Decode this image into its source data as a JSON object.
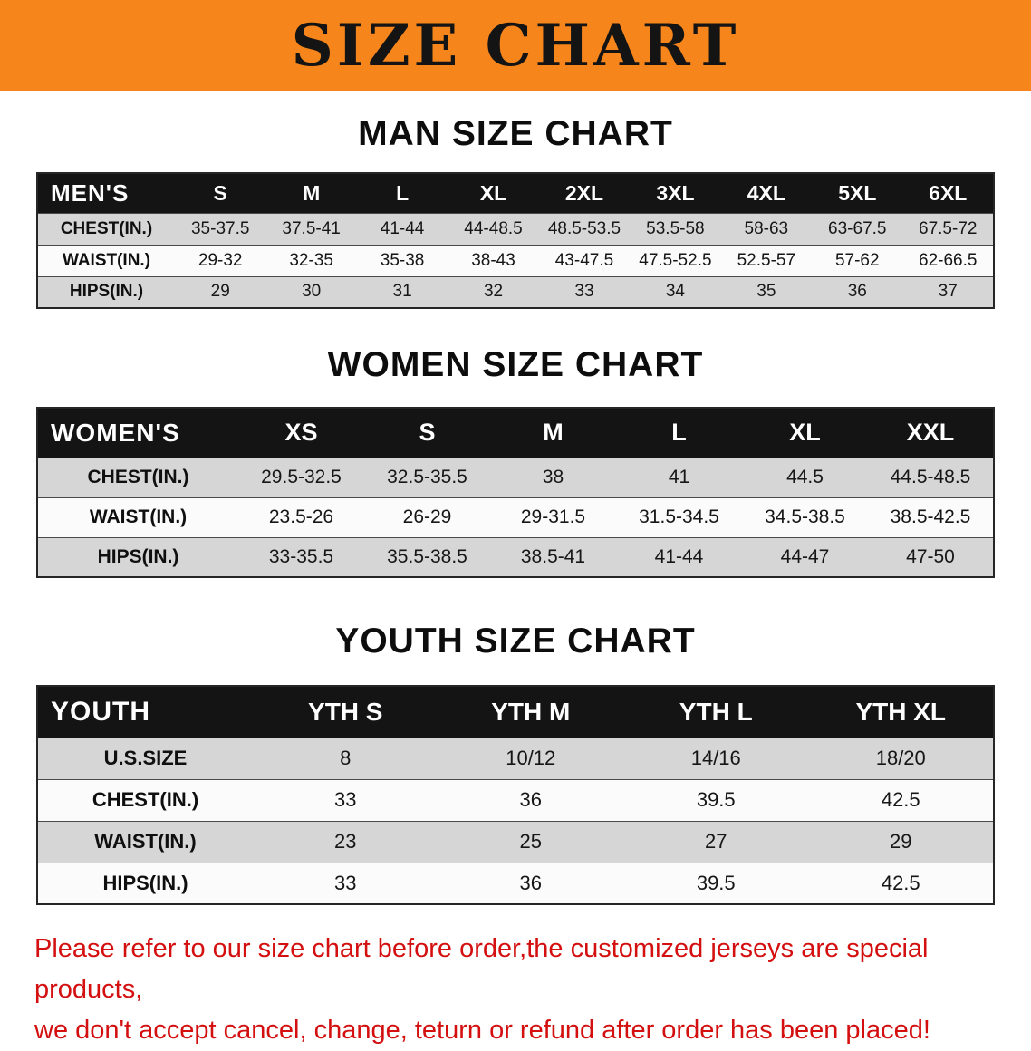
{
  "banner": {
    "title": "SIZE CHART"
  },
  "colors": {
    "banner_bg": "#f6861c",
    "header_row_bg": "#141414",
    "stripe_row_bg": "#d6d6d6",
    "notice_text": "#d40f0f"
  },
  "sections": [
    {
      "heading": "MAN SIZE CHART",
      "table": {
        "header": [
          "MEN'S",
          "S",
          "M",
          "L",
          "XL",
          "2XL",
          "3XL",
          "4XL",
          "5XL",
          "6XL"
        ],
        "rows": [
          {
            "label": "CHEST(IN.)",
            "values": [
              "35-37.5",
              "37.5-41",
              "41-44",
              "44-48.5",
              "48.5-53.5",
              "53.5-58",
              "58-63",
              "63-67.5",
              "67.5-72"
            ]
          },
          {
            "label": "WAIST(IN.)",
            "values": [
              "29-32",
              "32-35",
              "35-38",
              "38-43",
              "43-47.5",
              "47.5-52.5",
              "52.5-57",
              "57-62",
              "62-66.5"
            ]
          },
          {
            "label": "HIPS(IN.)",
            "values": [
              "29",
              "30",
              "31",
              "32",
              "33",
              "34",
              "35",
              "36",
              "37"
            ]
          }
        ]
      }
    },
    {
      "heading": "WOMEN SIZE CHART",
      "table": {
        "header": [
          "WOMEN'S",
          "XS",
          "S",
          "M",
          "L",
          "XL",
          "XXL"
        ],
        "rows": [
          {
            "label": "CHEST(IN.)",
            "values": [
              "29.5-32.5",
              "32.5-35.5",
              "38",
              "41",
              "44.5",
              "44.5-48.5"
            ]
          },
          {
            "label": "WAIST(IN.)",
            "values": [
              "23.5-26",
              "26-29",
              "29-31.5",
              "31.5-34.5",
              "34.5-38.5",
              "38.5-42.5"
            ]
          },
          {
            "label": "HIPS(IN.)",
            "values": [
              "33-35.5",
              "35.5-38.5",
              "38.5-41",
              "41-44",
              "44-47",
              "47-50"
            ]
          }
        ]
      }
    },
    {
      "heading": "YOUTH SIZE CHART",
      "table": {
        "header": [
          "YOUTH",
          "YTH S",
          "YTH M",
          "YTH L",
          "YTH XL"
        ],
        "rows": [
          {
            "label": "U.S.SIZE",
            "values": [
              "8",
              "10/12",
              "14/16",
              "18/20"
            ]
          },
          {
            "label": "CHEST(IN.)",
            "values": [
              "33",
              "36",
              "39.5",
              "42.5"
            ]
          },
          {
            "label": "WAIST(IN.)",
            "values": [
              "23",
              "25",
              "27",
              "29"
            ]
          },
          {
            "label": "HIPS(IN.)",
            "values": [
              "33",
              "36",
              "39.5",
              "42.5"
            ]
          }
        ]
      }
    }
  ],
  "footer": {
    "line1": "Please refer to our size chart before order,the customized jerseys are special products,",
    "line2": "we don't accept cancel, change, teturn or refund after order has been placed!"
  }
}
